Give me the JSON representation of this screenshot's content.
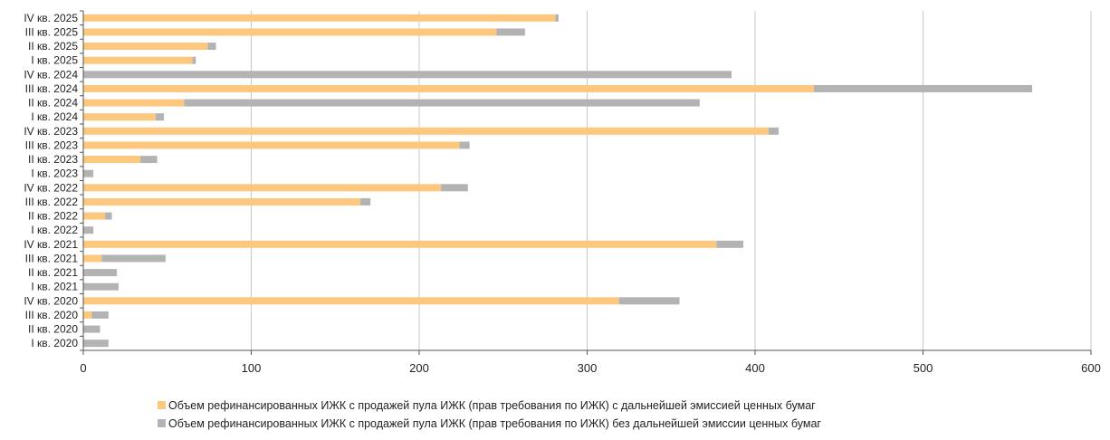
{
  "chart_data": {
    "type": "bar",
    "orientation": "horizontal",
    "stacked": true,
    "categories": [
      "IV кв. 2025",
      "III кв. 2025",
      "II кв. 2025",
      "I кв. 2025",
      "IV кв. 2024",
      "III кв. 2024",
      "II кв. 2024",
      "I кв. 2024",
      "IV кв. 2023",
      "III кв. 2023",
      "II кв. 2023",
      "I кв. 2023",
      "IV кв. 2022",
      "III кв. 2022",
      "II кв. 2022",
      "I кв. 2022",
      "IV кв. 2021",
      "III кв. 2021",
      "II кв. 2021",
      "I кв. 2021",
      "IV кв. 2020",
      "III кв. 2020",
      "II кв. 2020",
      "I кв. 2020"
    ],
    "series": [
      {
        "name": "Объем рефинансированных ИЖК с продажей пула ИЖК (прав требования по ИЖК) с дальнейшей эмиссией ценных бумаг",
        "color": "#FDC77E",
        "values": [
          281,
          246,
          74,
          65,
          0,
          435,
          60,
          43,
          408,
          224,
          34,
          0,
          213,
          165,
          13,
          0,
          377,
          11,
          0,
          0,
          319,
          5,
          0,
          0
        ]
      },
      {
        "name": "Объем рефинансированных ИЖК с продажей пула ИЖК (прав требования по ИЖК) без дальнейшей эмиссии ценных бумаг",
        "color": "#B3B3B3",
        "values": [
          2,
          17,
          5,
          2,
          386,
          130,
          307,
          5,
          6,
          6,
          10,
          6,
          16,
          6,
          4,
          6,
          16,
          38,
          20,
          21,
          36,
          10,
          10,
          15
        ]
      }
    ],
    "xlim": [
      0,
      600
    ],
    "xticks": [
      "0",
      "100",
      "200",
      "300",
      "400",
      "500",
      "600"
    ],
    "grid": "vertical",
    "legend_position": "bottom"
  }
}
